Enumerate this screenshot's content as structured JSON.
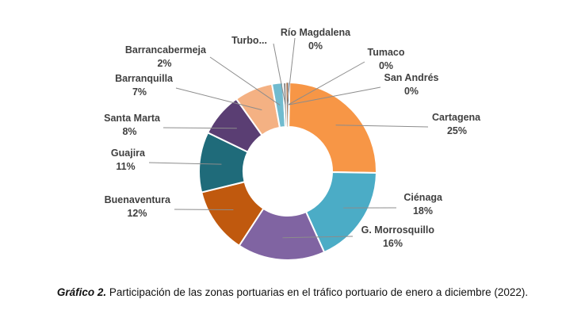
{
  "chart_data": {
    "type": "pie",
    "donut": true,
    "slices": [
      {
        "key": "cartagena",
        "name": "Cartagena",
        "pct_label": "25%",
        "value": 25,
        "color": "#F79646"
      },
      {
        "key": "cienaga",
        "name": "Ciénaga",
        "pct_label": "18%",
        "value": 18,
        "color": "#4BACC6"
      },
      {
        "key": "morrosquillo",
        "name": "G. Morrosquillo",
        "pct_label": "16%",
        "value": 16,
        "color": "#8064A2"
      },
      {
        "key": "buenaventura",
        "name": "Buenaventura",
        "pct_label": "12%",
        "value": 12,
        "color": "#C0590E"
      },
      {
        "key": "guajira",
        "name": "Guajira",
        "pct_label": "11%",
        "value": 11,
        "color": "#1F6B7A"
      },
      {
        "key": "santamarta",
        "name": "Santa Marta",
        "pct_label": "8%",
        "value": 8,
        "color": "#5A3E73"
      },
      {
        "key": "barranquilla",
        "name": "Barranquilla",
        "pct_label": "7%",
        "value": 7,
        "color": "#F4B183"
      },
      {
        "key": "barrancabermeja",
        "name": "Barrancabermeja",
        "pct_label": "2%",
        "value": 2,
        "color": "#71BBCF"
      },
      {
        "key": "turbo",
        "name": "Turbo...",
        "pct_label": "",
        "value": 0.6,
        "color": "#8C8C8C"
      },
      {
        "key": "riomagdalena",
        "name": "Río Magdalena",
        "pct_label": "0%",
        "value": 0.3,
        "color": "#9E5A2C"
      },
      {
        "key": "tumaco",
        "name": "Tumaco",
        "pct_label": "0%",
        "value": 0.2,
        "color": "#3C5A78"
      },
      {
        "key": "sanandres",
        "name": "San Andrés",
        "pct_label": "0%",
        "value": 0.1,
        "color": "#6E4F8C"
      }
    ]
  },
  "caption": {
    "label": "Gráfico 2.",
    "text": " Participación de las zonas portuarias en el tráfico portuario de enero a diciembre (2022)."
  }
}
